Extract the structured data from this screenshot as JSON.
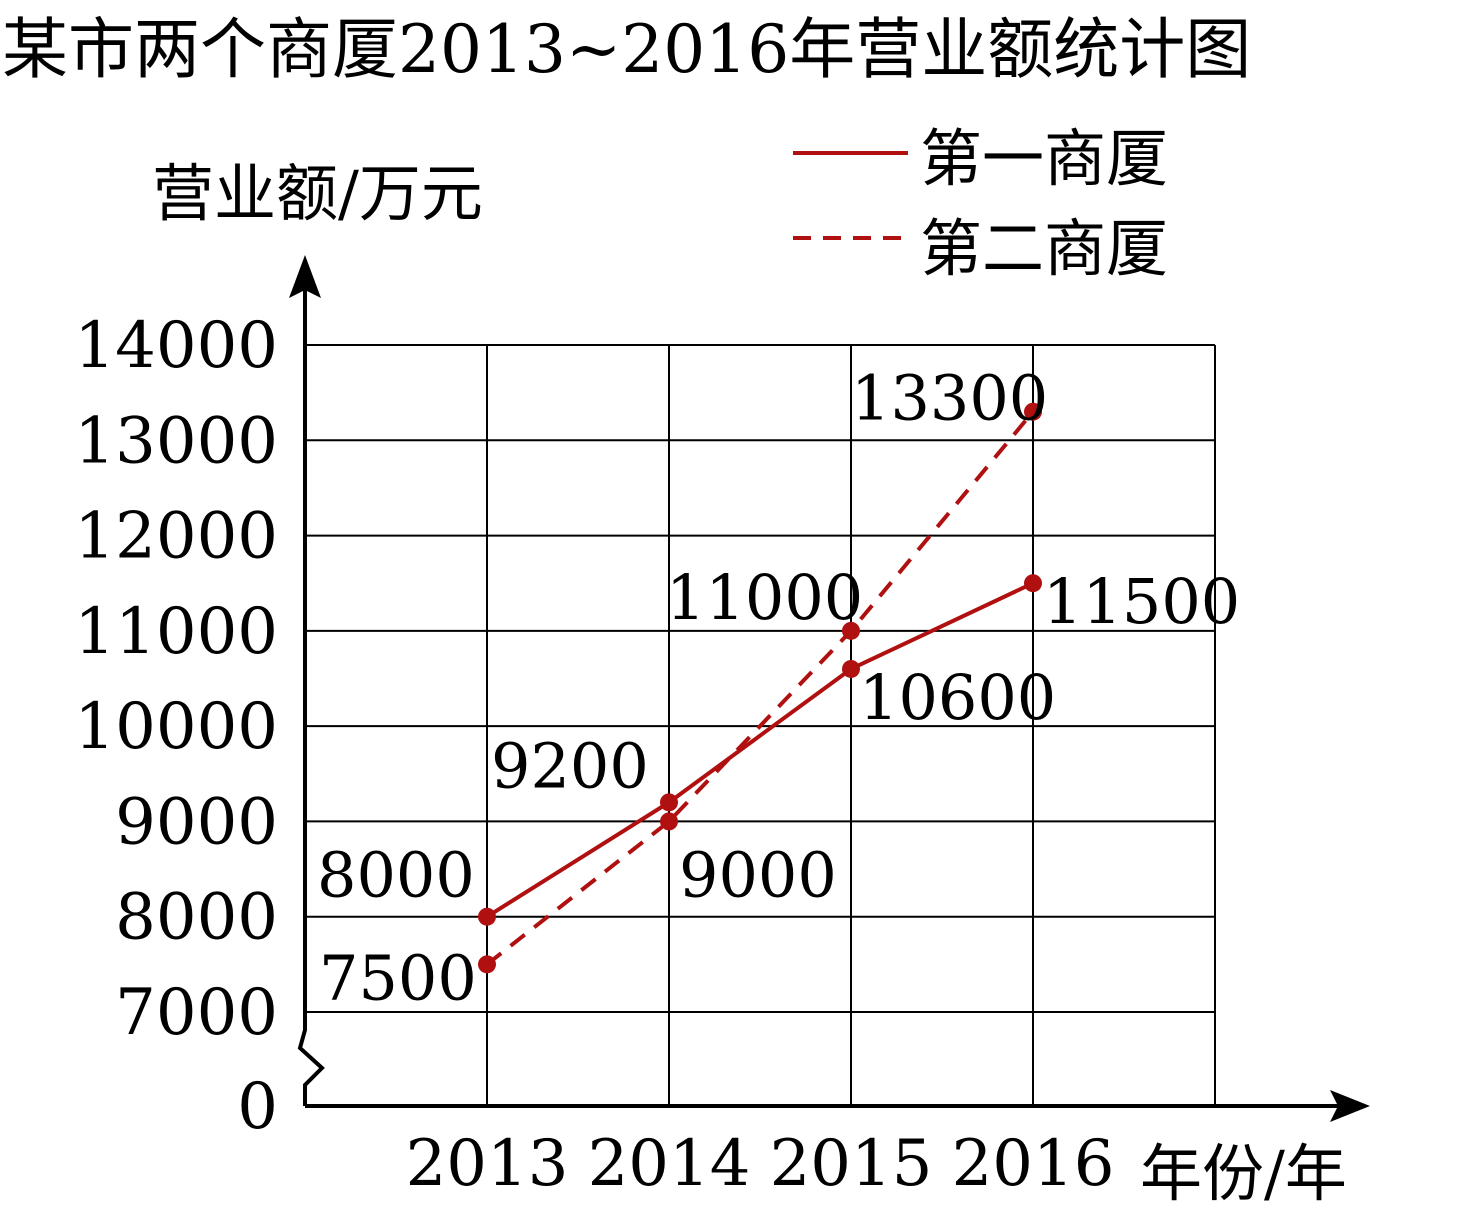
{
  "chart_data": {
    "type": "line",
    "title": "某市两个商厦2013~2016年营业额统计图",
    "ylabel": "营业额/万元",
    "xlabel": "年份/年",
    "categories": [
      "2013",
      "2014",
      "2015",
      "2016"
    ],
    "y_ticks": [
      "0",
      "7000",
      "8000",
      "9000",
      "10000",
      "11000",
      "12000",
      "13000",
      "14000"
    ],
    "ylim": [
      7000,
      14000
    ],
    "y_axis_break": true,
    "grid": true,
    "legend_position": "top-right",
    "series": [
      {
        "name": "第一商厦",
        "style": "solid",
        "values": [
          8000,
          9200,
          10600,
          11500
        ],
        "labels": [
          "8000",
          "9200",
          "10600",
          "11500"
        ]
      },
      {
        "name": "第二商厦",
        "style": "dashed",
        "values": [
          7500,
          9000,
          11000,
          13300
        ],
        "labels": [
          "7500",
          "9000",
          "11000",
          "13300"
        ]
      }
    ],
    "colors": {
      "line": "#b01010",
      "grid": "#000000",
      "axis": "#000000"
    }
  }
}
